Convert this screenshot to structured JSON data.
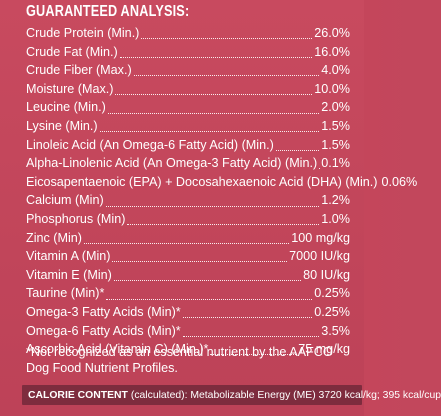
{
  "heading": "GUARANTEED ANALYSIS:",
  "rows": [
    {
      "name": "Crude Protein (Min.)",
      "value": "26.0%"
    },
    {
      "name": "Crude Fat (Min.)",
      "value": "16.0%"
    },
    {
      "name": "Crude Fiber (Max.)",
      "value": "4.0%"
    },
    {
      "name": "Moisture (Max.)",
      "value": "10.0%"
    },
    {
      "name": "Leucine (Min.)",
      "value": "2.0%"
    },
    {
      "name": "Lysine (Min.)",
      "value": "1.5%"
    },
    {
      "name": "Linoleic Acid (An Omega-6 Fatty Acid) (Min.)",
      "value": "1.5%"
    },
    {
      "name": "Alpha-Linolenic Acid  (An Omega-3 Fatty Acid) (Min.)",
      "value": "0.1%"
    },
    {
      "name": "Eicosapentaenoic (EPA) + Docosahexaenoic Acid (DHA) (Min.)",
      "value": "0.06%"
    },
    {
      "name": "Calcium (Min)",
      "value": "1.2%"
    },
    {
      "name": "Phosphorus (Min)",
      "value": "1.0%"
    },
    {
      "name": "Zinc (Min)",
      "value": "100 mg/kg"
    },
    {
      "name": "Vitamin A (Min)",
      "value": "7000 IU/kg"
    },
    {
      "name": "Vitamin E (Min)",
      "value": "80 IU/kg"
    },
    {
      "name": "Taurine (Min)*",
      "value": "0.25%"
    },
    {
      "name": "Omega-3 Fatty Acids (Min)*",
      "value": "0.25%"
    },
    {
      "name": "Omega-6 Fatty Acids (Min)*",
      "value": "3.5%"
    },
    {
      "name": "Ascorbic Acid (Vitamin C) (Min.)*",
      "value": "75 mg/kg"
    }
  ],
  "footnote": "*Not recognized as an essential nutrient by the AAFCO Dog Food Nutrient Profiles.",
  "calorie": {
    "label": "CALORIE CONTENT",
    "text": "(calculated): Metabolizable Energy (ME) 3720 kcal/kg; 395 kcal/cup"
  }
}
